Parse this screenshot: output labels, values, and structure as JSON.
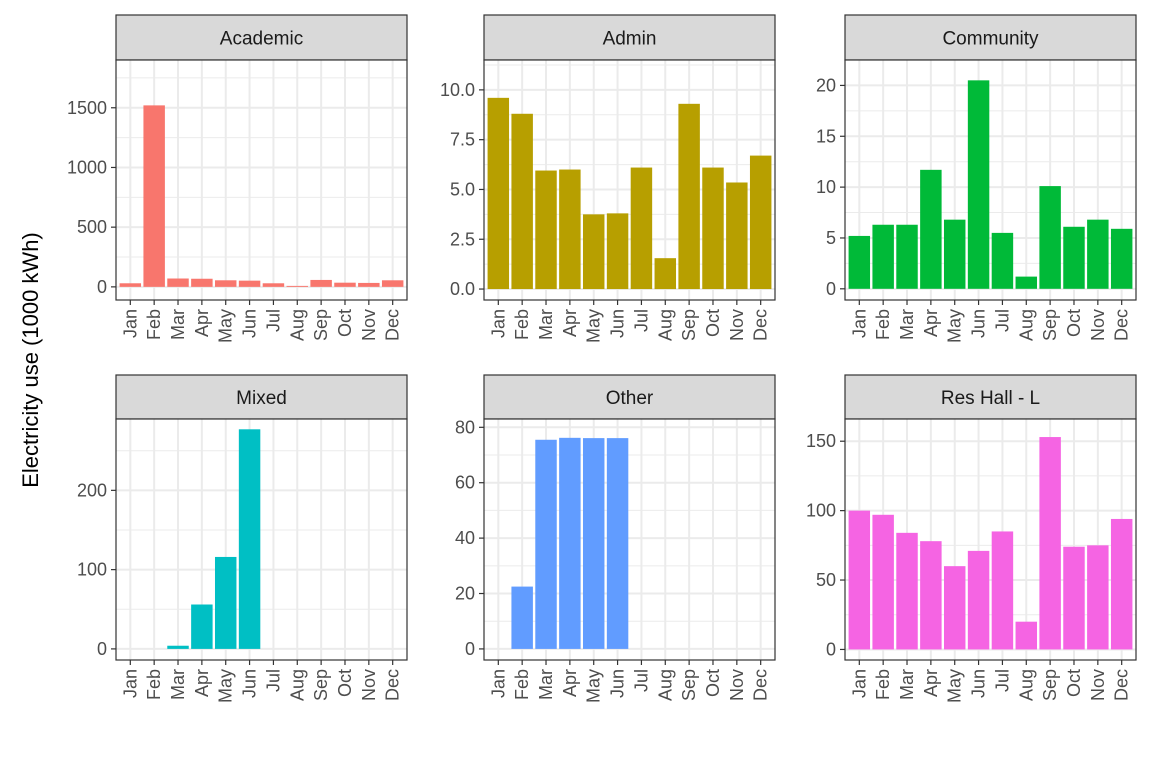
{
  "chart_data": {
    "type": "bar",
    "layout": "facet-grid",
    "title": "",
    "xlabel": "",
    "ylabel": "Electricity use (1000 kWh)",
    "grid": true,
    "legend": "none",
    "categories": [
      "Jan",
      "Feb",
      "Mar",
      "Apr",
      "May",
      "Jun",
      "Jul",
      "Aug",
      "Sep",
      "Oct",
      "Nov",
      "Dec"
    ],
    "facets": [
      {
        "name": "Academic",
        "color": "#F8766D",
        "ylim": [
          -110,
          1900
        ],
        "yticks": [
          0,
          500,
          1000,
          1500
        ],
        "ytick_labels": [
          "0",
          "500",
          "1000",
          "1500"
        ],
        "values": [
          30,
          1520,
          70,
          68,
          55,
          52,
          30,
          8,
          58,
          35,
          33,
          55
        ]
      },
      {
        "name": "Admin",
        "color": "#B79F00",
        "ylim": [
          -0.55,
          11.5
        ],
        "yticks": [
          0,
          2.5,
          5,
          7.5,
          10
        ],
        "ytick_labels": [
          "0.0",
          "2.5",
          "5.0",
          "7.5",
          "10.0"
        ],
        "values": [
          9.6,
          8.8,
          5.95,
          6.0,
          3.75,
          3.8,
          6.1,
          1.55,
          9.3,
          6.1,
          5.35,
          6.7
        ]
      },
      {
        "name": "Community",
        "color": "#00BA38",
        "ylim": [
          -1.1,
          22.5
        ],
        "yticks": [
          0,
          5,
          10,
          15,
          20
        ],
        "ytick_labels": [
          "0",
          "5",
          "10",
          "15",
          "20"
        ],
        "values": [
          5.2,
          6.3,
          6.3,
          11.7,
          6.8,
          20.5,
          5.5,
          1.2,
          10.1,
          6.1,
          6.8,
          5.9
        ]
      },
      {
        "name": "Mixed",
        "color": "#00BFC4",
        "ylim": [
          -14,
          290
        ],
        "yticks": [
          0,
          100,
          200
        ],
        "ytick_labels": [
          "0",
          "100",
          "200"
        ],
        "values": [
          0,
          0,
          4,
          56,
          116,
          277,
          0,
          0,
          0,
          0,
          0,
          0
        ]
      },
      {
        "name": "Other",
        "color": "#619CFF",
        "ylim": [
          -4,
          83
        ],
        "yticks": [
          0,
          20,
          40,
          60,
          80
        ],
        "ytick_labels": [
          "0",
          "20",
          "40",
          "60",
          "80"
        ],
        "values": [
          0,
          22.5,
          75.5,
          76.2,
          76.1,
          76.1,
          0,
          0,
          0,
          0,
          0,
          0
        ]
      },
      {
        "name": "Res Hall - L",
        "color": "#F564E3",
        "ylim": [
          -7.6,
          166
        ],
        "yticks": [
          0,
          50,
          100,
          150
        ],
        "ytick_labels": [
          "0",
          "50",
          "100",
          "150"
        ],
        "values": [
          100,
          97,
          84,
          78,
          60,
          71,
          85,
          20,
          153,
          74,
          75,
          94
        ]
      }
    ]
  }
}
